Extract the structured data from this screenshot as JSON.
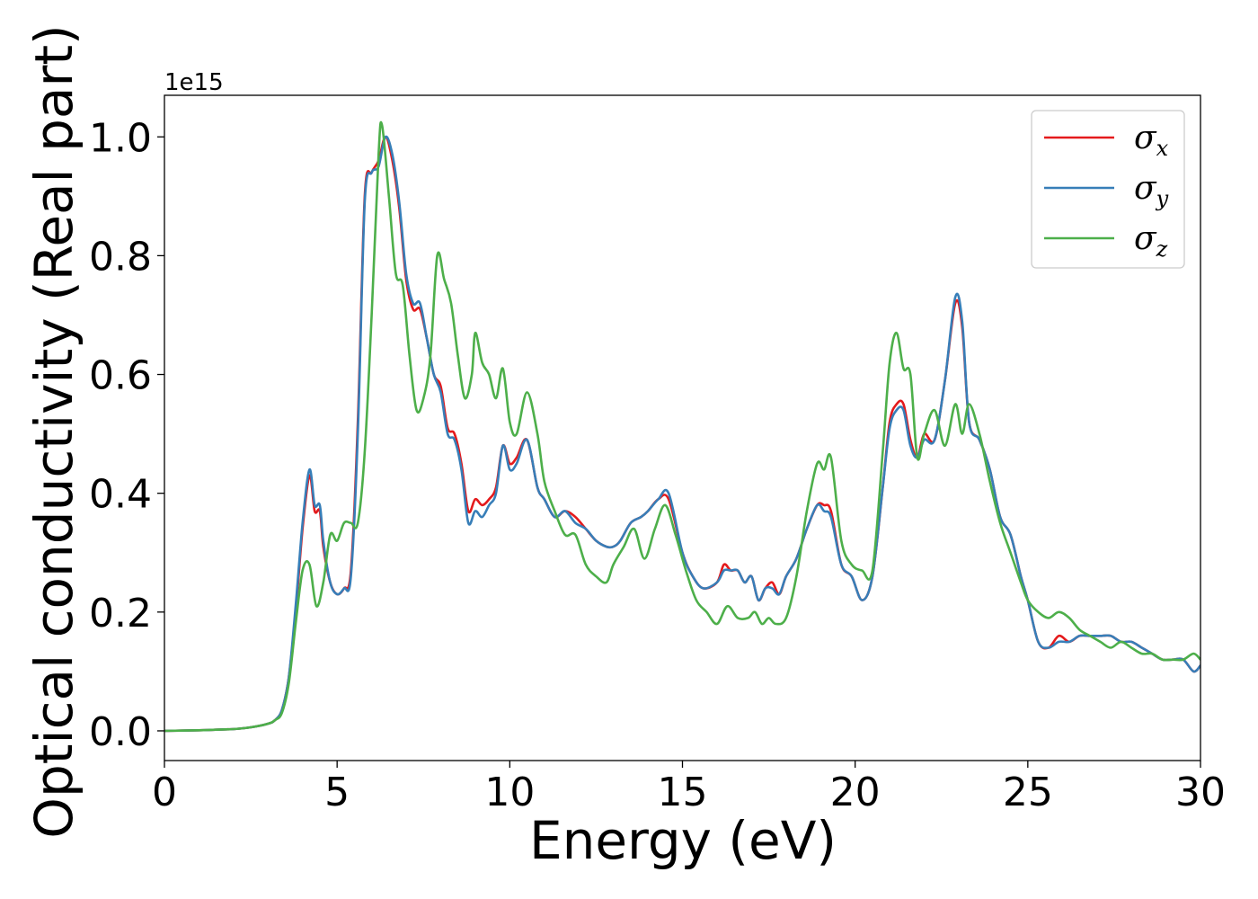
{
  "chart_data": {
    "type": "line",
    "title": "",
    "xlabel": "Energy (eV)",
    "ylabel": "Optical conductivity (Real part)",
    "y_offset_label": "1e15",
    "xlim": [
      0,
      30
    ],
    "ylim": [
      -0.05,
      1.07
    ],
    "x_ticks": [
      0,
      5,
      10,
      15,
      20,
      25,
      30
    ],
    "x_tick_labels": [
      "0",
      "5",
      "10",
      "15",
      "20",
      "25",
      "30"
    ],
    "y_ticks": [
      0.0,
      0.2,
      0.4,
      0.6,
      0.8,
      1.0
    ],
    "y_tick_labels": [
      "0.0",
      "0.2",
      "0.4",
      "0.6",
      "0.8",
      "1.0"
    ],
    "grid": false,
    "legend_position": "top-right",
    "series": [
      {
        "name": "σx",
        "legend_symbol": "σ",
        "legend_sub": "x",
        "color": "#e41a1c",
        "x": [
          0,
          1,
          2,
          2.5,
          3,
          3.2,
          3.4,
          3.6,
          3.8,
          4.0,
          4.2,
          4.35,
          4.5,
          4.6,
          4.8,
          5.0,
          5.2,
          5.4,
          5.6,
          5.8,
          6.0,
          6.2,
          6.4,
          6.6,
          6.8,
          7.0,
          7.2,
          7.4,
          7.6,
          7.8,
          8.0,
          8.2,
          8.4,
          8.6,
          8.8,
          9.0,
          9.2,
          9.4,
          9.6,
          9.8,
          10.0,
          10.2,
          10.5,
          10.8,
          11.0,
          11.3,
          11.6,
          11.9,
          12.2,
          12.5,
          12.8,
          13.0,
          13.2,
          13.5,
          13.8,
          14.0,
          14.3,
          14.6,
          15.0,
          15.3,
          15.6,
          16.0,
          16.2,
          16.4,
          16.6,
          16.8,
          17.0,
          17.2,
          17.4,
          17.6,
          17.8,
          18.0,
          18.3,
          18.6,
          18.9,
          19.1,
          19.3,
          19.6,
          19.9,
          20.2,
          20.5,
          20.8,
          21.0,
          21.2,
          21.4,
          21.6,
          21.8,
          22.0,
          22.3,
          22.6,
          22.9,
          23.1,
          23.3,
          23.6,
          23.9,
          24.2,
          24.5,
          24.8,
          25.0,
          25.3,
          25.6,
          25.9,
          26.2,
          26.5,
          26.8,
          27.1,
          27.4,
          27.7,
          28.0,
          28.3,
          28.6,
          28.9,
          29.2,
          29.5,
          29.8,
          30.0
        ],
        "y": [
          0,
          0.001,
          0.003,
          0.006,
          0.012,
          0.018,
          0.035,
          0.09,
          0.2,
          0.34,
          0.43,
          0.37,
          0.37,
          0.31,
          0.25,
          0.23,
          0.24,
          0.27,
          0.52,
          0.9,
          0.94,
          0.96,
          1.0,
          0.96,
          0.88,
          0.76,
          0.71,
          0.71,
          0.66,
          0.6,
          0.58,
          0.51,
          0.5,
          0.45,
          0.37,
          0.39,
          0.38,
          0.39,
          0.41,
          0.48,
          0.45,
          0.46,
          0.49,
          0.41,
          0.39,
          0.36,
          0.37,
          0.36,
          0.34,
          0.32,
          0.31,
          0.31,
          0.32,
          0.35,
          0.36,
          0.37,
          0.39,
          0.39,
          0.3,
          0.26,
          0.24,
          0.25,
          0.28,
          0.27,
          0.27,
          0.25,
          0.26,
          0.22,
          0.24,
          0.25,
          0.23,
          0.26,
          0.29,
          0.34,
          0.38,
          0.38,
          0.37,
          0.28,
          0.26,
          0.22,
          0.26,
          0.41,
          0.52,
          0.55,
          0.55,
          0.49,
          0.46,
          0.5,
          0.49,
          0.59,
          0.72,
          0.68,
          0.52,
          0.49,
          0.44,
          0.36,
          0.33,
          0.26,
          0.22,
          0.15,
          0.14,
          0.16,
          0.15,
          0.16,
          0.16,
          0.16,
          0.16,
          0.15,
          0.15,
          0.14,
          0.13,
          0.12,
          0.12,
          0.12,
          0.1,
          0.11
        ]
      },
      {
        "name": "σy",
        "legend_symbol": "σ",
        "legend_sub": "y",
        "color": "#377eb8",
        "x": [
          0,
          1,
          2,
          2.5,
          3,
          3.2,
          3.4,
          3.6,
          3.8,
          4.0,
          4.2,
          4.35,
          4.5,
          4.6,
          4.8,
          5.0,
          5.2,
          5.4,
          5.6,
          5.8,
          6.0,
          6.2,
          6.4,
          6.6,
          6.8,
          7.0,
          7.2,
          7.4,
          7.6,
          7.8,
          8.0,
          8.2,
          8.4,
          8.6,
          8.8,
          9.0,
          9.2,
          9.4,
          9.6,
          9.8,
          10.0,
          10.2,
          10.5,
          10.8,
          11.0,
          11.3,
          11.6,
          11.9,
          12.2,
          12.5,
          12.8,
          13.0,
          13.2,
          13.5,
          13.8,
          14.0,
          14.3,
          14.6,
          15.0,
          15.3,
          15.6,
          16.0,
          16.2,
          16.4,
          16.6,
          16.8,
          17.0,
          17.2,
          17.4,
          17.6,
          17.8,
          18.0,
          18.3,
          18.6,
          18.9,
          19.1,
          19.3,
          19.6,
          19.9,
          20.2,
          20.5,
          20.8,
          21.0,
          21.2,
          21.4,
          21.6,
          21.8,
          22.0,
          22.3,
          22.6,
          22.9,
          23.1,
          23.3,
          23.6,
          23.9,
          24.2,
          24.5,
          24.8,
          25.0,
          25.3,
          25.6,
          25.9,
          26.2,
          26.5,
          26.8,
          27.1,
          27.4,
          27.7,
          28.0,
          28.3,
          28.6,
          28.9,
          29.2,
          29.5,
          29.8,
          30.0
        ],
        "y": [
          0,
          0.001,
          0.003,
          0.006,
          0.012,
          0.018,
          0.035,
          0.09,
          0.21,
          0.35,
          0.44,
          0.38,
          0.38,
          0.32,
          0.25,
          0.23,
          0.24,
          0.26,
          0.5,
          0.89,
          0.94,
          0.95,
          1.0,
          0.97,
          0.89,
          0.77,
          0.72,
          0.72,
          0.66,
          0.6,
          0.57,
          0.5,
          0.49,
          0.44,
          0.35,
          0.37,
          0.36,
          0.38,
          0.4,
          0.48,
          0.44,
          0.45,
          0.49,
          0.41,
          0.39,
          0.36,
          0.37,
          0.35,
          0.34,
          0.32,
          0.31,
          0.31,
          0.32,
          0.35,
          0.36,
          0.37,
          0.39,
          0.4,
          0.3,
          0.26,
          0.24,
          0.25,
          0.27,
          0.27,
          0.27,
          0.25,
          0.26,
          0.22,
          0.24,
          0.24,
          0.23,
          0.26,
          0.29,
          0.34,
          0.38,
          0.37,
          0.36,
          0.28,
          0.26,
          0.22,
          0.26,
          0.41,
          0.51,
          0.54,
          0.54,
          0.48,
          0.46,
          0.49,
          0.49,
          0.59,
          0.73,
          0.69,
          0.52,
          0.49,
          0.44,
          0.36,
          0.33,
          0.26,
          0.22,
          0.15,
          0.14,
          0.15,
          0.15,
          0.16,
          0.16,
          0.16,
          0.16,
          0.15,
          0.15,
          0.14,
          0.13,
          0.12,
          0.12,
          0.12,
          0.1,
          0.11
        ]
      },
      {
        "name": "σz",
        "legend_symbol": "σ",
        "legend_sub": "z",
        "color": "#4daf4a",
        "x": [
          0,
          1,
          2,
          2.5,
          3,
          3.2,
          3.4,
          3.6,
          3.8,
          4.0,
          4.2,
          4.4,
          4.6,
          4.8,
          5.0,
          5.2,
          5.4,
          5.6,
          5.8,
          6.0,
          6.2,
          6.3,
          6.5,
          6.7,
          6.9,
          7.1,
          7.3,
          7.5,
          7.7,
          7.9,
          8.1,
          8.3,
          8.5,
          8.7,
          8.9,
          9.0,
          9.2,
          9.4,
          9.6,
          9.8,
          10.0,
          10.2,
          10.5,
          10.8,
          11.0,
          11.3,
          11.6,
          11.9,
          12.2,
          12.5,
          12.8,
          13.0,
          13.3,
          13.6,
          13.9,
          14.2,
          14.5,
          14.8,
          15.1,
          15.4,
          15.7,
          16.0,
          16.3,
          16.6,
          16.9,
          17.1,
          17.3,
          17.5,
          17.7,
          18.0,
          18.3,
          18.6,
          18.9,
          19.1,
          19.3,
          19.6,
          19.9,
          20.2,
          20.5,
          20.8,
          21.0,
          21.2,
          21.4,
          21.6,
          21.8,
          22.0,
          22.3,
          22.6,
          22.9,
          23.1,
          23.3,
          23.6,
          23.9,
          24.2,
          24.5,
          24.8,
          25.0,
          25.3,
          25.6,
          25.9,
          26.2,
          26.5,
          26.8,
          27.1,
          27.4,
          27.7,
          28.0,
          28.3,
          28.6,
          28.9,
          29.2,
          29.5,
          29.8,
          30.0
        ],
        "y": [
          0,
          0.001,
          0.003,
          0.006,
          0.012,
          0.018,
          0.03,
          0.08,
          0.18,
          0.27,
          0.28,
          0.21,
          0.25,
          0.33,
          0.32,
          0.35,
          0.35,
          0.35,
          0.47,
          0.7,
          0.97,
          1.02,
          0.9,
          0.77,
          0.75,
          0.63,
          0.54,
          0.56,
          0.63,
          0.8,
          0.76,
          0.72,
          0.63,
          0.56,
          0.6,
          0.67,
          0.62,
          0.6,
          0.56,
          0.61,
          0.52,
          0.5,
          0.57,
          0.5,
          0.42,
          0.37,
          0.33,
          0.33,
          0.28,
          0.26,
          0.25,
          0.28,
          0.31,
          0.34,
          0.29,
          0.34,
          0.38,
          0.33,
          0.27,
          0.22,
          0.2,
          0.18,
          0.21,
          0.19,
          0.19,
          0.2,
          0.18,
          0.19,
          0.18,
          0.19,
          0.26,
          0.37,
          0.45,
          0.44,
          0.46,
          0.32,
          0.28,
          0.27,
          0.27,
          0.47,
          0.62,
          0.67,
          0.61,
          0.6,
          0.46,
          0.5,
          0.54,
          0.48,
          0.55,
          0.5,
          0.55,
          0.5,
          0.42,
          0.35,
          0.3,
          0.25,
          0.22,
          0.2,
          0.19,
          0.2,
          0.19,
          0.17,
          0.16,
          0.15,
          0.14,
          0.15,
          0.14,
          0.13,
          0.13,
          0.12,
          0.12,
          0.12,
          0.13,
          0.12
        ]
      }
    ]
  }
}
